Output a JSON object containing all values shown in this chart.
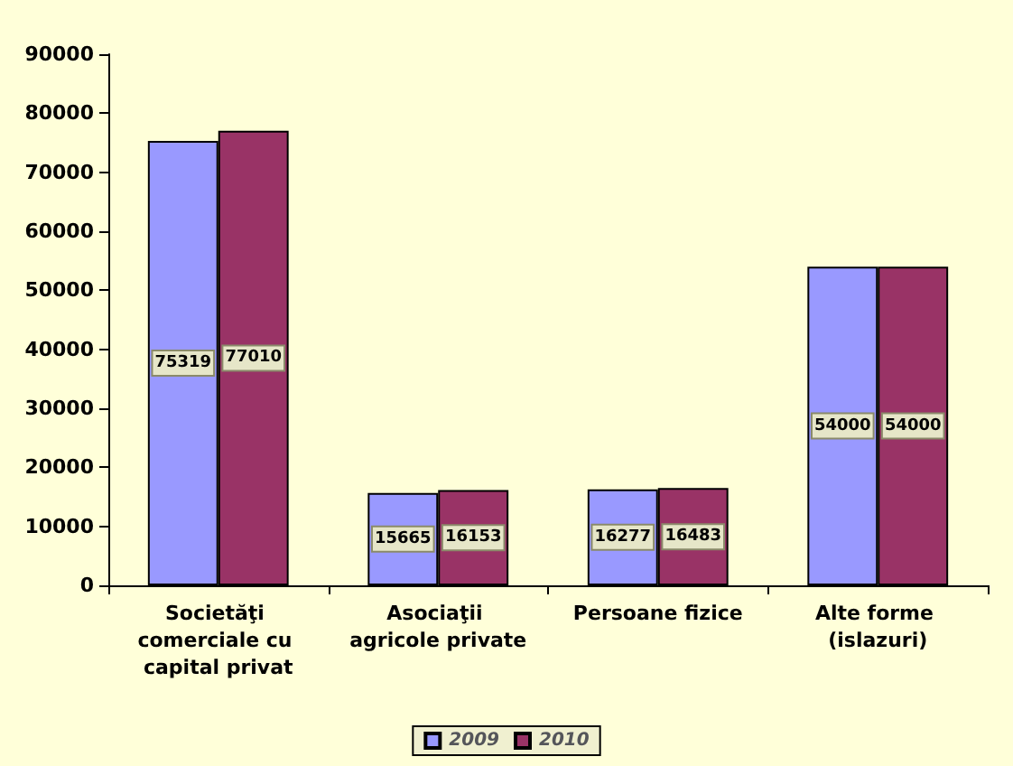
{
  "chart_data": {
    "type": "bar",
    "categories": [
      "Societăţi comerciale cu capital privat",
      "Asociaţii agricole private",
      "Persoane fizice",
      "Alte forme (islazuri)"
    ],
    "series": [
      {
        "name": "2009",
        "color": "#9999ff",
        "values": [
          75319,
          15665,
          16277,
          54000
        ]
      },
      {
        "name": "2010",
        "color": "#993366",
        "values": [
          77010,
          16153,
          16483,
          54000
        ]
      }
    ],
    "ylim": [
      0,
      90000
    ],
    "yticks": [
      0,
      10000,
      20000,
      30000,
      40000,
      50000,
      60000,
      70000,
      80000,
      90000
    ],
    "data_labels": true,
    "grid": false,
    "legend": "bottom"
  }
}
